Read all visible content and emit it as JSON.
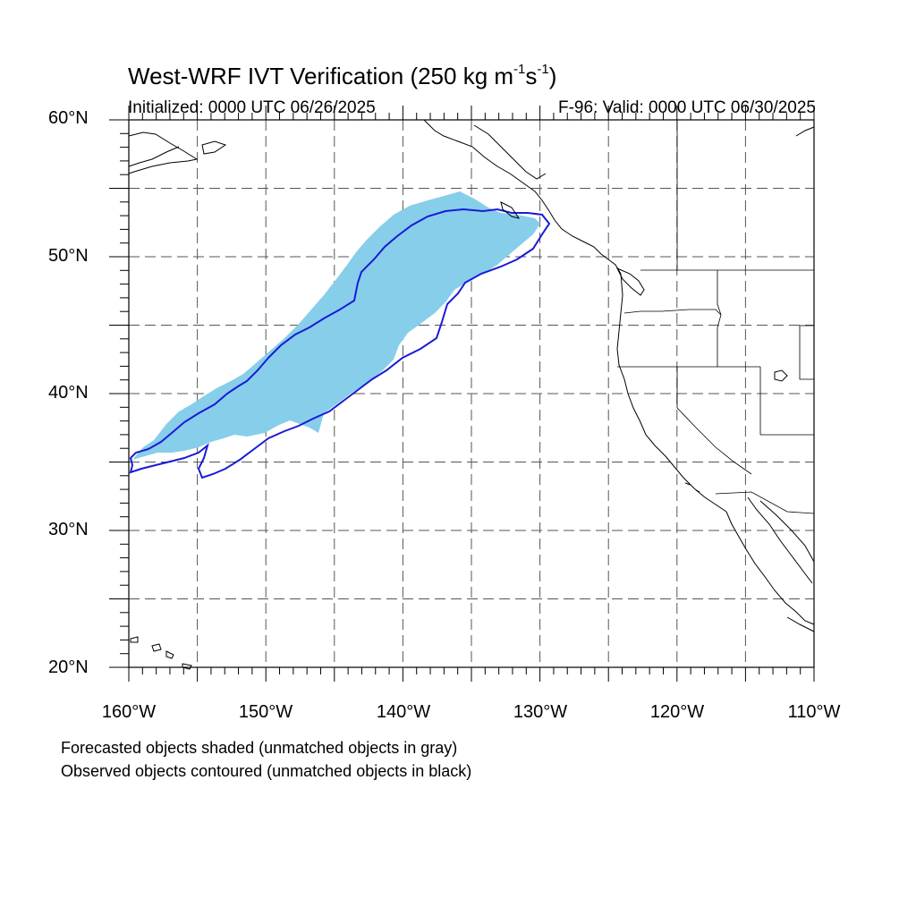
{
  "title": {
    "main": "West-WRF IVT Verification (250 kg m",
    "sup1": "-1",
    "mid": "s",
    "sup2": "-1",
    "end": ")"
  },
  "init_label": "Initialized: 0000 UTC 06/26/2025",
  "valid_label": "F-96: Valid: 0000 UTC 06/30/2025",
  "lat_labels": [
    "60°N",
    "50°N",
    "40°N",
    "30°N",
    "20°N"
  ],
  "lon_labels": [
    "160°W",
    "150°W",
    "140°W",
    "130°W",
    "120°W",
    "110°W"
  ],
  "legend_notes": [
    "Forecasted objects shaded (unmatched objects in gray)",
    "Observed objects contoured (unmatched objects in black)"
  ],
  "colors": {
    "forecast_fill": "#87ceea",
    "observed_contour": "#1a1ad6",
    "coastline": "#000000",
    "grid": "#555555"
  },
  "map": {
    "projection": "cylindrical equidistant",
    "lon_range": [
      -160,
      -110
    ],
    "lat_range": [
      20,
      60
    ],
    "grid_spacing_deg": 5
  }
}
